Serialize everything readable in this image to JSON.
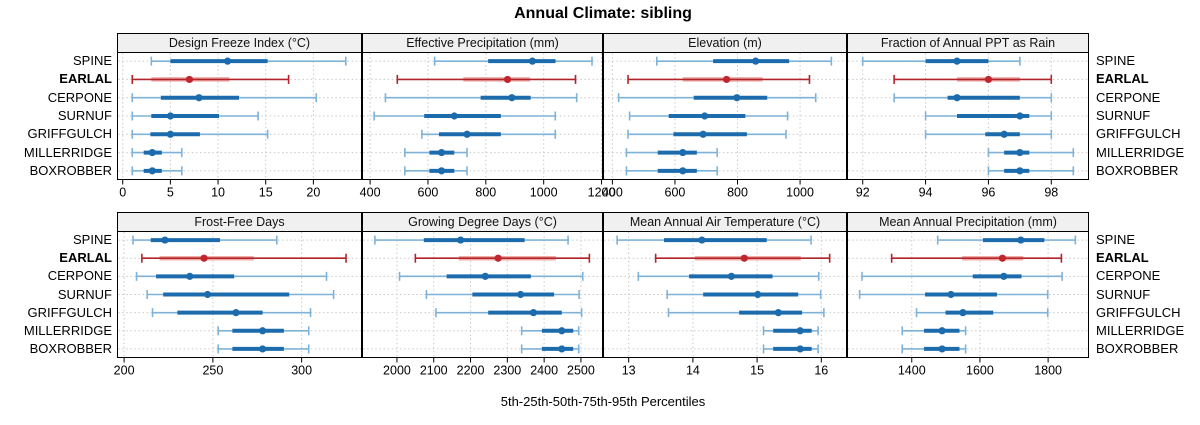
{
  "title": "Annual Climate: sibling",
  "xlabel": "5th-25th-50th-75th-95th Percentiles",
  "sites": [
    "SPINE",
    "EARLAL",
    "CERPONE",
    "SURNUF",
    "GRIFFGULCH",
    "MILLERRIDGE",
    "BOXROBBER"
  ],
  "highlight_site": "EARLAL",
  "percentile_levels": [
    5,
    25,
    50,
    75,
    95
  ],
  "colors": {
    "blue": "#1c6cad",
    "blue_light": "#7fb2d8",
    "red": "#b2232a",
    "red_light": "#f1aba7",
    "red_dot": "#bf262d",
    "grid": "#c9c9c9",
    "strip_bg": "#f0f0f0",
    "panel_border": "#000000"
  },
  "chart_data": [
    {
      "type": "percentile-range",
      "title": "Design Freeze Index (°C)",
      "xlim": [
        -0.6,
        25.1
      ],
      "ticks": [
        0,
        5,
        10,
        15,
        20
      ],
      "grid": true,
      "series": [
        {
          "site": "SPINE",
          "values": [
            3,
            5,
            11,
            15.2,
            23.4
          ]
        },
        {
          "site": "EARLAL",
          "values": [
            1,
            3,
            7,
            11.2,
            17.4
          ]
        },
        {
          "site": "CERPONE",
          "values": [
            1,
            4,
            8,
            12.2,
            20.3
          ]
        },
        {
          "site": "SURNUF",
          "values": [
            1,
            3,
            5,
            10.1,
            14.2
          ]
        },
        {
          "site": "GRIFFGULCH",
          "values": [
            1,
            2.9,
            5,
            8.1,
            15.2
          ]
        },
        {
          "site": "MILLERRIDGE",
          "values": [
            1,
            2.2,
            3.1,
            4.1,
            6.2
          ]
        },
        {
          "site": "BOXROBBER",
          "values": [
            1,
            2.2,
            3.1,
            4.1,
            6.2
          ]
        }
      ]
    },
    {
      "type": "percentile-range",
      "title": "Effective Precipitation (mm)",
      "xlim": [
        372,
        1205
      ],
      "ticks": [
        400,
        600,
        800,
        1000,
        1200
      ],
      "grid": true,
      "series": [
        {
          "site": "SPINE",
          "values": [
            623,
            808,
            961,
            1041,
            1167
          ]
        },
        {
          "site": "EARLAL",
          "values": [
            494,
            722,
            875,
            953,
            1110
          ]
        },
        {
          "site": "CERPONE",
          "values": [
            453,
            782,
            890,
            955,
            1114
          ]
        },
        {
          "site": "SURNUF",
          "values": [
            414,
            587,
            691,
            852,
            1040
          ]
        },
        {
          "site": "GRIFFGULCH",
          "values": [
            579,
            638,
            735,
            852,
            1040
          ]
        },
        {
          "site": "MILLERRIDGE",
          "values": [
            520,
            605,
            647,
            691,
            735
          ]
        },
        {
          "site": "BOXROBBER",
          "values": [
            520,
            605,
            647,
            691,
            735
          ]
        }
      ]
    },
    {
      "type": "percentile-range",
      "title": "Elevation (m)",
      "xlim": [
        370,
        1150
      ],
      "ticks": [
        400,
        600,
        800,
        1000
      ],
      "grid": true,
      "series": [
        {
          "site": "SPINE",
          "values": [
            542,
            722,
            858,
            965,
            1100
          ]
        },
        {
          "site": "EARLAL",
          "values": [
            450,
            625,
            765,
            880,
            1030
          ]
        },
        {
          "site": "CERPONE",
          "values": [
            420,
            660,
            798,
            895,
            1050
          ]
        },
        {
          "site": "SURNUF",
          "values": [
            455,
            580,
            695,
            825,
            960
          ]
        },
        {
          "site": "GRIFFGULCH",
          "values": [
            450,
            595,
            690,
            830,
            955
          ]
        },
        {
          "site": "MILLERRIDGE",
          "values": [
            445,
            545,
            625,
            670,
            735
          ]
        },
        {
          "site": "BOXROBBER",
          "values": [
            445,
            545,
            625,
            670,
            735
          ]
        }
      ]
    },
    {
      "type": "percentile-range",
      "title": "Fraction of Annual PPT as Rain",
      "xlim": [
        91.5,
        99.2
      ],
      "ticks": [
        92,
        94,
        96,
        98
      ],
      "grid": true,
      "series": [
        {
          "site": "SPINE",
          "values": [
            92,
            94,
            95,
            96,
            97
          ]
        },
        {
          "site": "EARLAL",
          "values": [
            93,
            95,
            96,
            97,
            98
          ]
        },
        {
          "site": "CERPONE",
          "values": [
            93,
            94.7,
            95,
            97,
            98
          ]
        },
        {
          "site": "SURNUF",
          "values": [
            94,
            95,
            97,
            97.3,
            98
          ]
        },
        {
          "site": "GRIFFGULCH",
          "values": [
            94,
            95.9,
            96.5,
            97,
            98
          ]
        },
        {
          "site": "MILLERRIDGE",
          "values": [
            96,
            96.5,
            97,
            97.3,
            98.7
          ]
        },
        {
          "site": "BOXROBBER",
          "values": [
            96,
            96.5,
            97,
            97.3,
            98.7
          ]
        }
      ]
    },
    {
      "type": "percentile-range",
      "title": "Frost-Free Days",
      "xlim": [
        196,
        334
      ],
      "ticks": [
        200,
        250,
        300
      ],
      "grid": true,
      "series": [
        {
          "site": "SPINE",
          "values": [
            205,
            215,
            223,
            254,
            286
          ]
        },
        {
          "site": "EARLAL",
          "values": [
            210,
            220,
            245,
            273,
            325
          ]
        },
        {
          "site": "CERPONE",
          "values": [
            207,
            218,
            237,
            262,
            314
          ]
        },
        {
          "site": "SURNUF",
          "values": [
            213,
            222,
            247,
            293,
            318
          ]
        },
        {
          "site": "GRIFFGULCH",
          "values": [
            216,
            230,
            263,
            278,
            305
          ]
        },
        {
          "site": "MILLERRIDGE",
          "values": [
            253,
            261,
            278,
            290,
            304
          ]
        },
        {
          "site": "BOXROBBER",
          "values": [
            253,
            261,
            278,
            290,
            304
          ]
        }
      ]
    },
    {
      "type": "percentile-range",
      "title": "Growing Degree Days (°C)",
      "xlim": [
        1905,
        2560
      ],
      "ticks": [
        2000,
        2100,
        2200,
        2300,
        2400,
        2500
      ],
      "grid": true,
      "series": [
        {
          "site": "SPINE",
          "values": [
            1940,
            2073,
            2173,
            2347,
            2465
          ]
        },
        {
          "site": "EARLAL",
          "values": [
            2050,
            2168,
            2275,
            2432,
            2523
          ]
        },
        {
          "site": "CERPONE",
          "values": [
            2007,
            2135,
            2240,
            2364,
            2505
          ]
        },
        {
          "site": "SURNUF",
          "values": [
            2080,
            2205,
            2336,
            2427,
            2495
          ]
        },
        {
          "site": "GRIFFGULCH",
          "values": [
            2106,
            2248,
            2371,
            2448,
            2502
          ]
        },
        {
          "site": "MILLERRIDGE",
          "values": [
            2339,
            2394,
            2448,
            2479,
            2494
          ]
        },
        {
          "site": "BOXROBBER",
          "values": [
            2339,
            2394,
            2448,
            2479,
            2494
          ]
        }
      ]
    },
    {
      "type": "percentile-range",
      "title": "Mean Annual Air Temperature (°C)",
      "xlim": [
        12.6,
        16.4
      ],
      "ticks": [
        13,
        14,
        15,
        16
      ],
      "grid": true,
      "series": [
        {
          "site": "SPINE",
          "values": [
            12.82,
            13.55,
            14.14,
            15.15,
            15.84
          ]
        },
        {
          "site": "EARLAL",
          "values": [
            13.42,
            14.03,
            14.8,
            15.68,
            16.13
          ]
        },
        {
          "site": "CERPONE",
          "values": [
            13.15,
            13.94,
            14.6,
            15.24,
            15.96
          ]
        },
        {
          "site": "SURNUF",
          "values": [
            13.6,
            14.16,
            15.01,
            15.64,
            15.99
          ]
        },
        {
          "site": "GRIFFGULCH",
          "values": [
            13.62,
            14.72,
            15.33,
            15.7,
            16.04
          ]
        },
        {
          "site": "MILLERRIDGE",
          "values": [
            15.1,
            15.25,
            15.67,
            15.85,
            15.95
          ]
        },
        {
          "site": "BOXROBBER",
          "values": [
            15.1,
            15.25,
            15.67,
            15.85,
            15.95
          ]
        }
      ]
    },
    {
      "type": "percentile-range",
      "title": "Mean Annual Precipitation (mm)",
      "xlim": [
        1210,
        1920
      ],
      "ticks": [
        1400,
        1600,
        1800
      ],
      "grid": true,
      "series": [
        {
          "site": "SPINE",
          "values": [
            1476,
            1609,
            1720,
            1789,
            1880
          ]
        },
        {
          "site": "EARLAL",
          "values": [
            1341,
            1548,
            1666,
            1727,
            1839
          ]
        },
        {
          "site": "CERPONE",
          "values": [
            1254,
            1579,
            1670,
            1722,
            1841
          ]
        },
        {
          "site": "SURNUF",
          "values": [
            1247,
            1439,
            1515,
            1650,
            1799
          ]
        },
        {
          "site": "GRIFFGULCH",
          "values": [
            1414,
            1499,
            1550,
            1639,
            1799
          ]
        },
        {
          "site": "MILLERRIDGE",
          "values": [
            1372,
            1436,
            1489,
            1540,
            1558
          ]
        },
        {
          "site": "BOXROBBER",
          "values": [
            1372,
            1436,
            1489,
            1540,
            1558
          ]
        }
      ]
    }
  ]
}
